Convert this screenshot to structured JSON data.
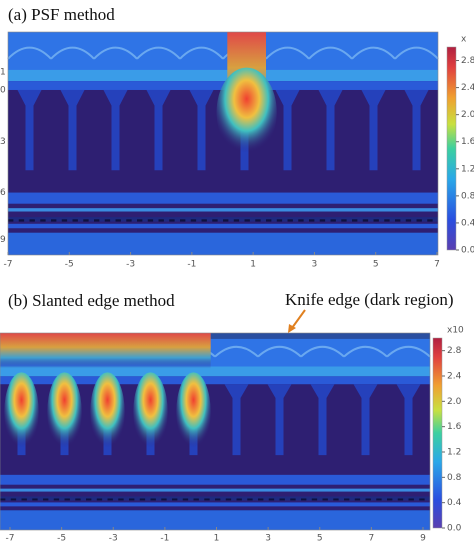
{
  "panels": [
    {
      "title": "(a) PSF method",
      "type": "heatmap",
      "xlim": [
        -7,
        7
      ],
      "xticks": [
        -7,
        -5,
        -3,
        -1,
        1,
        3,
        5,
        7
      ],
      "y_labels": [
        "1",
        "0",
        "3",
        "6",
        "9"
      ],
      "colorbar": {
        "unit": "x",
        "clim": [
          0,
          3.0
        ],
        "ticks": [
          {
            "value": 0,
            "label": "0.0"
          },
          0.4,
          0.8,
          1.2,
          1.6,
          {
            "value": 2,
            "label": "2.0"
          },
          2.4,
          2.8
        ]
      }
    },
    {
      "title": "(b) Slanted edge method",
      "type": "heatmap",
      "annotation": "Knife edge (dark region)",
      "xlim": [
        -7,
        9
      ],
      "xticks": [
        -7,
        -5,
        -3,
        -1,
        1,
        3,
        5,
        7,
        9
      ],
      "colorbar": {
        "unit": "x10",
        "clim": [
          0,
          3.0
        ],
        "ticks": [
          {
            "value": 0,
            "label": "0.0"
          },
          0.4,
          0.8,
          1.2,
          1.6,
          {
            "value": 2,
            "label": "2.0"
          },
          2.4,
          2.8
        ]
      }
    }
  ]
}
